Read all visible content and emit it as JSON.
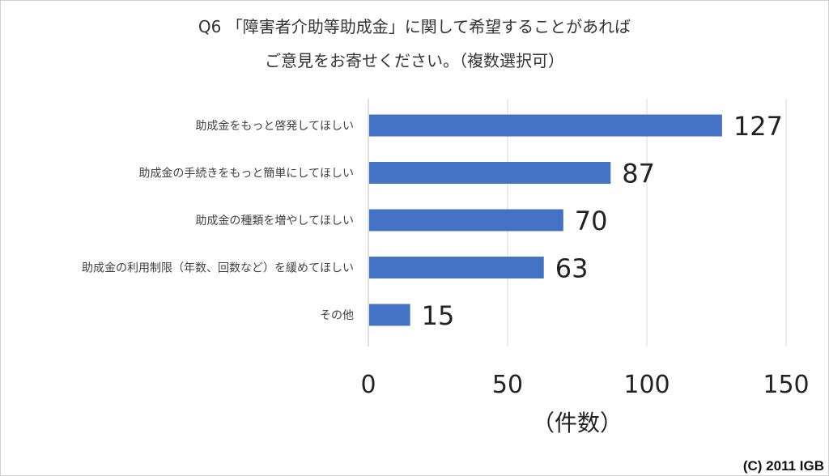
{
  "chart_data": {
    "type": "bar",
    "orientation": "horizontal",
    "title_lines": [
      "Q6 「障害者介助等助成金」に関して希望することがあれば",
      "ご意見をお寄せください。（複数選択可）"
    ],
    "categories": [
      "助成金をもっと啓発してほしい",
      "助成金の手続きをもっと簡単にしてほしい",
      "助成金の種類を増やしてほしい",
      "助成金の利用制限（年数、回数など）を緩めてほしい",
      "その他"
    ],
    "values": [
      127,
      87,
      70,
      63,
      15
    ],
    "xlim": [
      0,
      150
    ],
    "xticks": [
      0,
      50,
      100,
      150
    ],
    "xlabel": "（件数）",
    "grid": true,
    "legend": "none",
    "bar_color": "#4472c4",
    "grid_color": "#d9d9d9"
  },
  "copyright": "(C) 2011 IGB"
}
